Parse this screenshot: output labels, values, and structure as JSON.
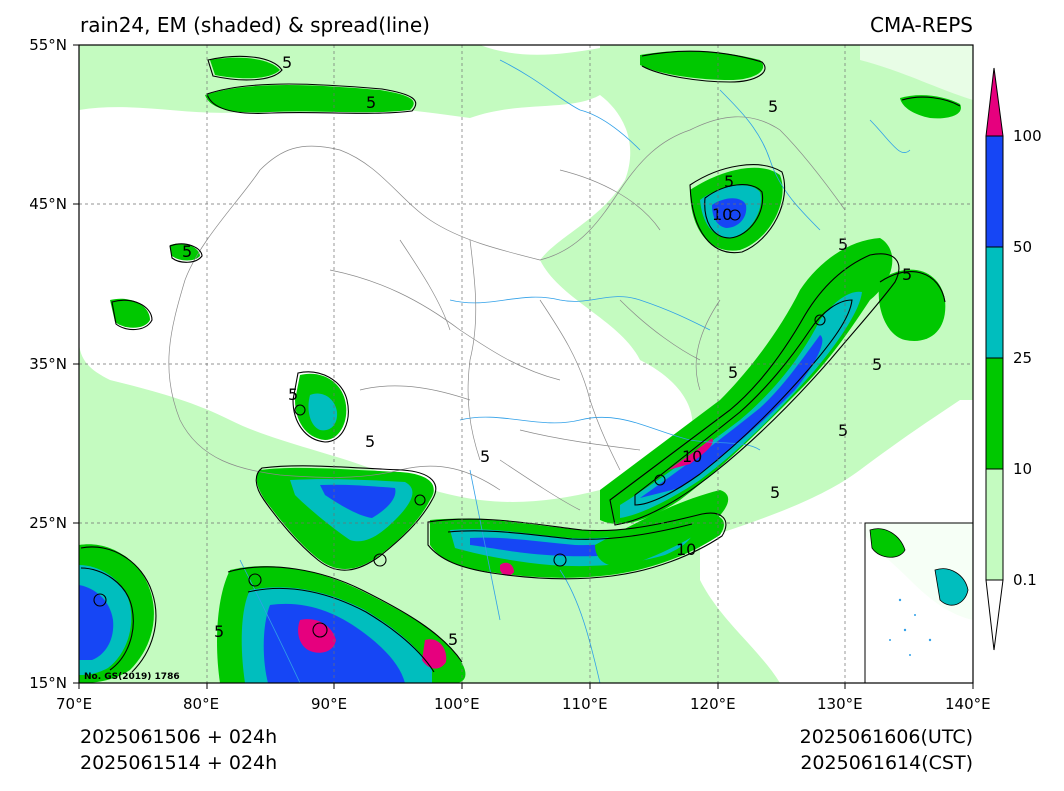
{
  "header": {
    "title": "rain24, EM (shaded) & spread(line)",
    "model": "CMA-REPS"
  },
  "map": {
    "lon_range": [
      70,
      140
    ],
    "lat_range": [
      15,
      55
    ],
    "x_ticks": [
      "70°E",
      "80°E",
      "90°E",
      "100°E",
      "110°E",
      "120°E",
      "130°E",
      "140°E"
    ],
    "y_ticks": [
      "55°N",
      "45°N",
      "35°N",
      "25°N",
      "15°N"
    ],
    "grid": "dashed",
    "copyright": "No. GS(2019) 1786",
    "contour_label": "5",
    "contour_label_10": "10"
  },
  "colorbar": {
    "labels": [
      "100",
      "50",
      "25",
      "10",
      "0.1"
    ],
    "colors": {
      "level_0_1": "#c4fbc0",
      "level_10": "#00c800",
      "level_25": "#00bebe",
      "level_50": "#1646f5",
      "level_100": "#e6007e"
    }
  },
  "footer": {
    "init_utc": "2025061506  +  024h",
    "init_cst": "2025061514  +  024h",
    "valid_utc": "2025061606(UTC)",
    "valid_cst": "2025061614(CST)"
  }
}
